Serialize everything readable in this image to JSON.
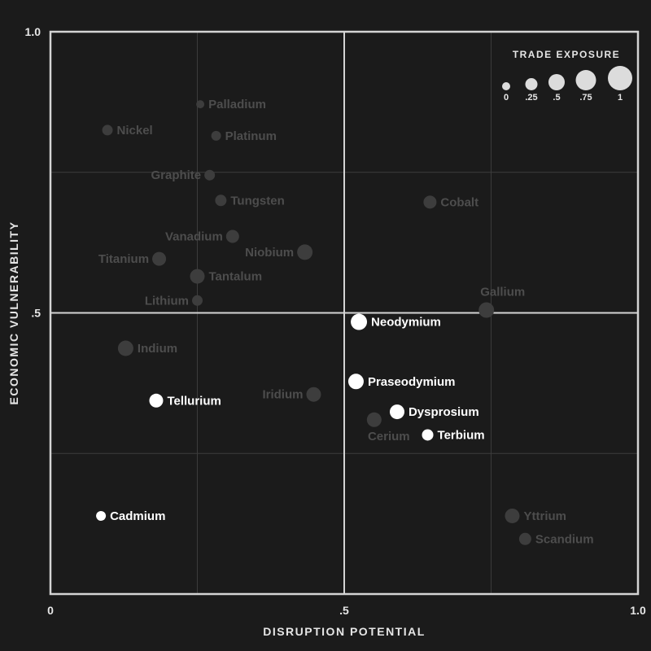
{
  "chart_data": {
    "type": "scatter",
    "xlabel": "DISRUPTION POTENTIAL",
    "ylabel": "ECONOMIC VULNERABILITY",
    "xlim": [
      0,
      1
    ],
    "ylim": [
      0,
      1
    ],
    "x_ticks": [
      {
        "value": 0,
        "label": "0"
      },
      {
        "value": 0.5,
        "label": ".5"
      },
      {
        "value": 1,
        "label": "1.0"
      }
    ],
    "y_ticks": [
      {
        "value": 0.5,
        "label": ".5"
      },
      {
        "value": 1,
        "label": "1.0"
      }
    ],
    "grid": true,
    "minor_gridlines": [
      0.25,
      0.75
    ],
    "quadrant_lines": 0.5,
    "size_legend": {
      "title": "TRADE EXPOSURE",
      "placement": "top-right",
      "items": [
        {
          "value": 0,
          "label": "0"
        },
        {
          "value": 0.25,
          "label": ".25"
        },
        {
          "value": 0.5,
          "label": ".5"
        },
        {
          "value": 0.75,
          "label": ".75"
        },
        {
          "value": 1,
          "label": "1"
        }
      ]
    },
    "colors": {
      "background": "#1b1b1b",
      "frame": "#d4d4d4",
      "highlight": "#ffffff",
      "muted_point": "#3d3d3d",
      "muted_label": "#4d4d4d",
      "legend_point": "#dcdcdc"
    },
    "points": [
      {
        "name": "Palladium",
        "x": 0.255,
        "y": 0.871,
        "trade_exposure": 0.0,
        "highlight": false,
        "label_pos": "right"
      },
      {
        "name": "Nickel",
        "x": 0.097,
        "y": 0.825,
        "trade_exposure": 0.15,
        "highlight": false,
        "label_pos": "right"
      },
      {
        "name": "Platinum",
        "x": 0.282,
        "y": 0.815,
        "trade_exposure": 0.1,
        "highlight": false,
        "label_pos": "right"
      },
      {
        "name": "Graphite",
        "x": 0.271,
        "y": 0.745,
        "trade_exposure": 0.15,
        "highlight": false,
        "label_pos": "left"
      },
      {
        "name": "Tungsten",
        "x": 0.29,
        "y": 0.7,
        "trade_exposure": 0.2,
        "highlight": false,
        "label_pos": "right"
      },
      {
        "name": "Cobalt",
        "x": 0.646,
        "y": 0.697,
        "trade_exposure": 0.3,
        "highlight": false,
        "label_pos": "right"
      },
      {
        "name": "Vanadium",
        "x": 0.31,
        "y": 0.636,
        "trade_exposure": 0.3,
        "highlight": false,
        "label_pos": "left"
      },
      {
        "name": "Niobium",
        "x": 0.433,
        "y": 0.608,
        "trade_exposure": 0.45,
        "highlight": false,
        "label_pos": "left"
      },
      {
        "name": "Titanium",
        "x": 0.185,
        "y": 0.596,
        "trade_exposure": 0.35,
        "highlight": false,
        "label_pos": "left"
      },
      {
        "name": "Tantalum",
        "x": 0.25,
        "y": 0.565,
        "trade_exposure": 0.4,
        "highlight": false,
        "label_pos": "right"
      },
      {
        "name": "Lithium",
        "x": 0.25,
        "y": 0.522,
        "trade_exposure": 0.15,
        "highlight": false,
        "label_pos": "left"
      },
      {
        "name": "Gallium",
        "x": 0.742,
        "y": 0.505,
        "trade_exposure": 0.45,
        "highlight": false,
        "label_pos": "above"
      },
      {
        "name": "Neodymium",
        "x": 0.525,
        "y": 0.484,
        "trade_exposure": 0.5,
        "highlight": true,
        "label_pos": "right"
      },
      {
        "name": "Indium",
        "x": 0.128,
        "y": 0.437,
        "trade_exposure": 0.45,
        "highlight": false,
        "label_pos": "right"
      },
      {
        "name": "Praseodymium",
        "x": 0.52,
        "y": 0.378,
        "trade_exposure": 0.45,
        "highlight": true,
        "label_pos": "right"
      },
      {
        "name": "Iridium",
        "x": 0.448,
        "y": 0.355,
        "trade_exposure": 0.4,
        "highlight": false,
        "label_pos": "left"
      },
      {
        "name": "Tellurium",
        "x": 0.18,
        "y": 0.344,
        "trade_exposure": 0.35,
        "highlight": true,
        "label_pos": "right"
      },
      {
        "name": "Dysprosium",
        "x": 0.59,
        "y": 0.324,
        "trade_exposure": 0.4,
        "highlight": true,
        "label_pos": "right"
      },
      {
        "name": "Cerium",
        "x": 0.551,
        "y": 0.31,
        "trade_exposure": 0.4,
        "highlight": false,
        "label_pos": "below"
      },
      {
        "name": "Terbium",
        "x": 0.642,
        "y": 0.283,
        "trade_exposure": 0.2,
        "highlight": true,
        "label_pos": "right"
      },
      {
        "name": "Cadmium",
        "x": 0.086,
        "y": 0.139,
        "trade_exposure": 0.1,
        "highlight": true,
        "label_pos": "right"
      },
      {
        "name": "Yttrium",
        "x": 0.786,
        "y": 0.139,
        "trade_exposure": 0.4,
        "highlight": false,
        "label_pos": "right"
      },
      {
        "name": "Scandium",
        "x": 0.808,
        "y": 0.098,
        "trade_exposure": 0.25,
        "highlight": false,
        "label_pos": "right"
      }
    ]
  }
}
